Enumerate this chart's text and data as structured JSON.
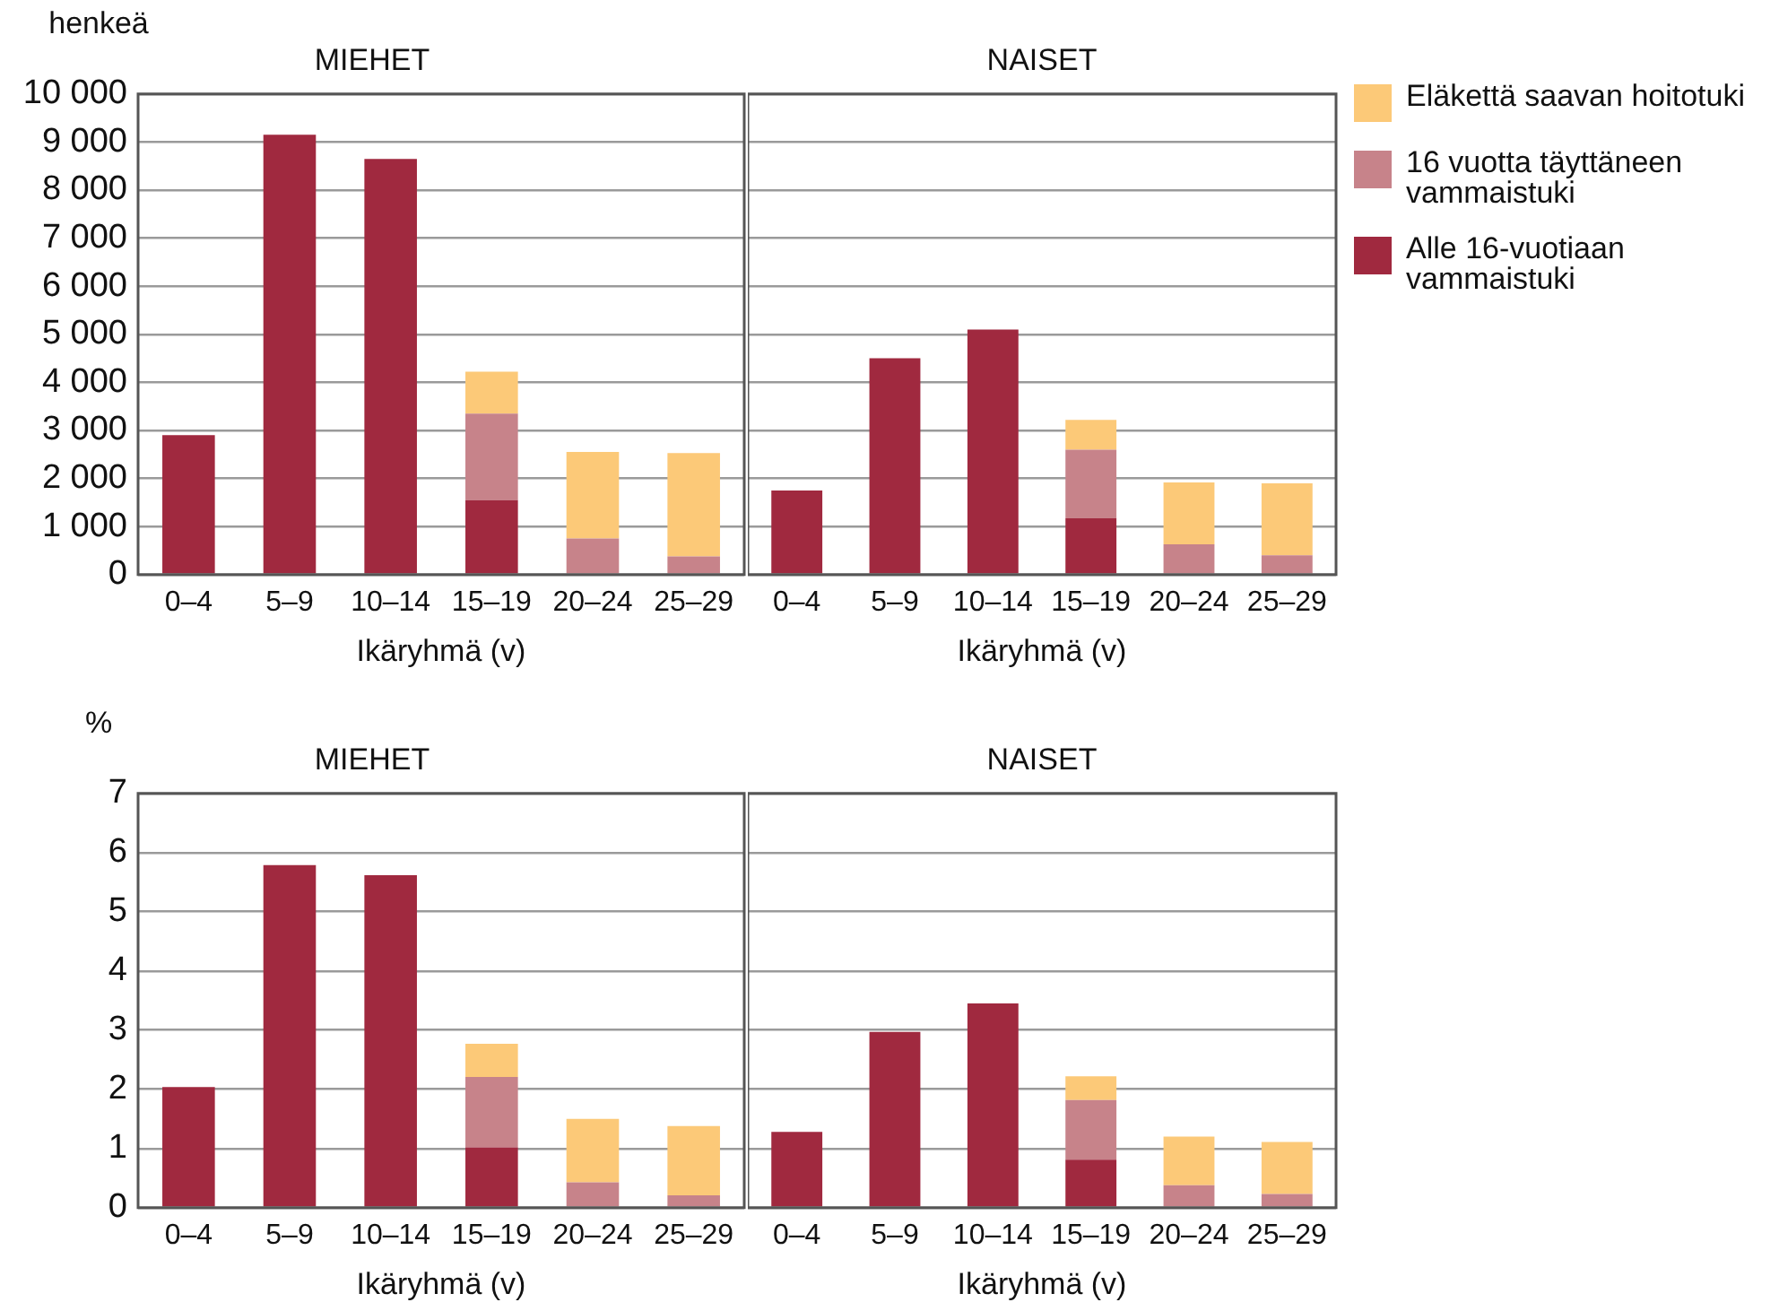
{
  "chart_data": [
    {
      "type": "bar",
      "stacked": true,
      "title": "MIEHET",
      "xlabel": "Ikäryhmä (v)",
      "ylabel": "henkeä",
      "categories": [
        "0–4",
        "5–9",
        "10–14",
        "15–19",
        "20–24",
        "25–29"
      ],
      "series": [
        {
          "color": "#a0293f",
          "values": [
            2900,
            9150,
            8650,
            1550,
            null,
            null
          ]
        },
        {
          "color": "#c7838a",
          "values": [
            null,
            null,
            null,
            1800,
            750,
            380
          ]
        },
        {
          "color": "#fcc978",
          "values": [
            null,
            null,
            null,
            870,
            1800,
            2150
          ]
        }
      ],
      "ylim": [
        0,
        10000
      ],
      "yticks": [
        0,
        {
          "value": 1000,
          "label": "1 000"
        },
        {
          "value": 2000,
          "label": "2 000"
        },
        {
          "value": 3000,
          "label": "3 000"
        },
        {
          "value": 4000,
          "label": "4 000"
        },
        {
          "value": 5000,
          "label": "5 000"
        },
        {
          "value": 6000,
          "label": "6 000"
        },
        {
          "value": 7000,
          "label": "7 000"
        },
        {
          "value": 8000,
          "label": "8 000"
        },
        {
          "value": 9000,
          "label": "9 000"
        },
        {
          "value": 10000,
          "label": "10 000"
        }
      ],
      "grid": "y"
    },
    {
      "type": "bar",
      "stacked": true,
      "title": "NAISET",
      "xlabel": "Ikäryhmä (v)",
      "categories": [
        "0–4",
        "5–9",
        "10–14",
        "15–19",
        "20–24",
        "25–29"
      ],
      "series": [
        {
          "name": "Alle 16-vuotiaan vammaistuki",
          "color": "#a0293f",
          "values": [
            1750,
            4500,
            5100,
            1170,
            null,
            null
          ]
        },
        {
          "name": "16 vuotta täyttäneen vammaistuki",
          "color": "#c7838a",
          "values": [
            null,
            null,
            null,
            1430,
            630,
            400
          ]
        },
        {
          "name": "Eläkettä saavan hoitotuki",
          "color": "#fcc978",
          "values": [
            null,
            null,
            null,
            620,
            1290,
            1500
          ]
        }
      ],
      "ylim": [
        0,
        10000
      ],
      "yticks": [
        0,
        1000,
        2000,
        3000,
        4000,
        5000,
        6000,
        7000,
        8000,
        9000,
        10000
      ],
      "grid": "y",
      "tick_labels": "x",
      "legend": "right"
    },
    {
      "type": "bar",
      "stacked": true,
      "title": "MIEHET",
      "xlabel": "Ikäryhmä (v)",
      "ylabel": "%",
      "categories": [
        "0–4",
        "5–9",
        "10–14",
        "15–19",
        "20–24",
        "25–29"
      ],
      "series": [
        {
          "color": "#a0293f",
          "values": [
            2.04,
            5.79,
            5.62,
            1.02,
            null,
            null
          ]
        },
        {
          "color": "#c7838a",
          "values": [
            null,
            null,
            null,
            1.19,
            0.43,
            0.21
          ]
        },
        {
          "color": "#fcc978",
          "values": [
            null,
            null,
            null,
            0.56,
            1.07,
            1.17
          ]
        }
      ],
      "ylim": [
        0,
        7
      ],
      "yticks": [
        0,
        1,
        2,
        3,
        4,
        5,
        6,
        7
      ],
      "grid": "y"
    },
    {
      "type": "bar",
      "stacked": true,
      "title": "NAISET",
      "xlabel": "Ikäryhmä (v)",
      "categories": [
        "0–4",
        "5–9",
        "10–14",
        "15–19",
        "20–24",
        "25–29"
      ],
      "series": [
        {
          "color": "#a0293f",
          "values": [
            1.28,
            2.97,
            3.45,
            0.81,
            null,
            null
          ]
        },
        {
          "color": "#c7838a",
          "values": [
            null,
            null,
            null,
            1.01,
            0.38,
            0.23
          ]
        },
        {
          "color": "#fcc978",
          "values": [
            null,
            null,
            null,
            0.4,
            0.82,
            0.88
          ]
        }
      ],
      "ylim": [
        0,
        7
      ],
      "yticks": [
        0,
        1,
        2,
        3,
        4,
        5,
        6,
        7
      ],
      "grid": "y",
      "tick_labels": "x"
    }
  ]
}
